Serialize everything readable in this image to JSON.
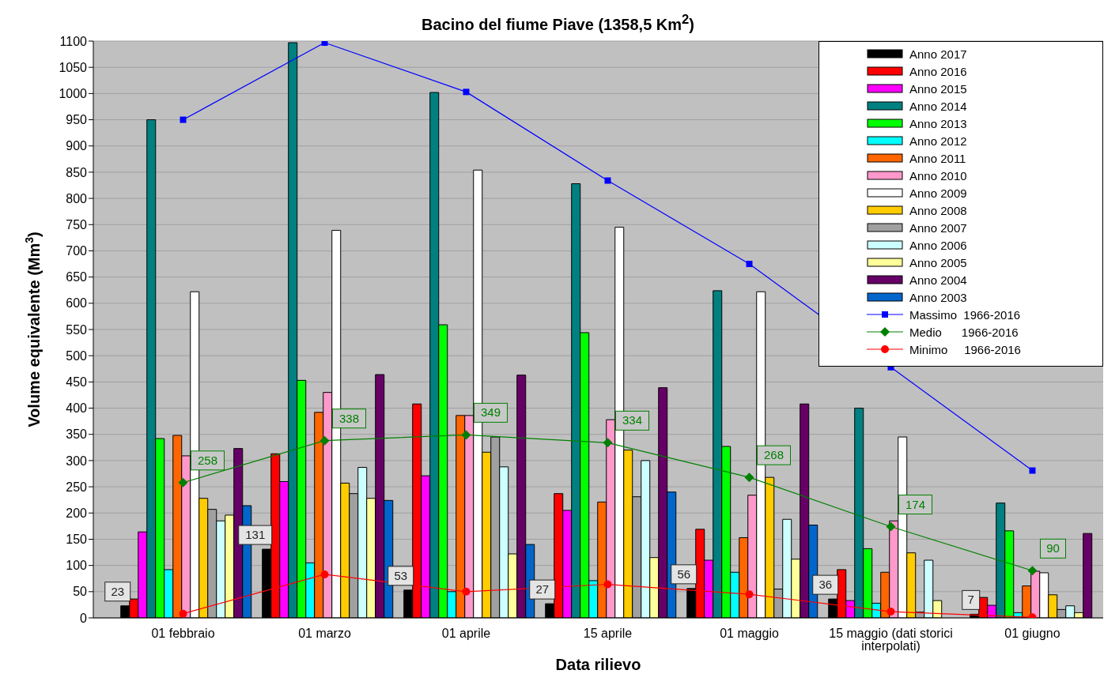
{
  "chart_data": {
    "type": "bar",
    "title": "Bacino del fiume Piave (1358,5 Km$^{2}$)",
    "xlabel": "Data rilievo",
    "ylabel": "Volume equivalente (Mm$^{3}$)",
    "categories": [
      "01 febbraio",
      "01 marzo",
      "01 aprile",
      "15 aprile",
      "01 maggio",
      "15 maggio (dati storici interpolati)",
      "01 giugno"
    ],
    "ylim": [
      0,
      1100
    ],
    "yticks": [
      0,
      50,
      100,
      150,
      200,
      250,
      300,
      350,
      400,
      450,
      500,
      550,
      600,
      650,
      700,
      750,
      800,
      850,
      900,
      950,
      1000,
      1050,
      1100
    ],
    "grid": "y",
    "legend": "top right",
    "series": [
      {
        "name": "Anno 2017",
        "color": "#000000",
        "values": [
          23,
          131,
          53,
          27,
          56,
          36,
          7
        ],
        "value_labels": [
          "23",
          "131",
          "53",
          "27",
          "56",
          "36",
          "7"
        ]
      },
      {
        "name": "Anno 2016",
        "color": "#ff0000",
        "values": [
          36,
          313,
          408,
          237,
          169,
          92,
          39
        ]
      },
      {
        "name": "Anno 2015",
        "color": "#ff00ff",
        "values": [
          164,
          260,
          271,
          205,
          110,
          33,
          24
        ]
      },
      {
        "name": "Anno 2014",
        "color": "#008080",
        "values": [
          950,
          1097,
          1002,
          828,
          624,
          400,
          219
        ]
      },
      {
        "name": "Anno 2013",
        "color": "#00ff00",
        "values": [
          342,
          453,
          559,
          544,
          327,
          132,
          166
        ]
      },
      {
        "name": "Anno 2012",
        "color": "#00ffff",
        "values": [
          92,
          105,
          50,
          71,
          87,
          28,
          10
        ]
      },
      {
        "name": "Anno 2011",
        "color": "#ff6600",
        "values": [
          348,
          392,
          386,
          221,
          153,
          87,
          61
        ]
      },
      {
        "name": "Anno 2010",
        "color": "#ff99cc",
        "values": [
          309,
          430,
          386,
          378,
          234,
          185,
          89
        ]
      },
      {
        "name": "Anno 2009",
        "color": "#ffffff",
        "values": [
          622,
          739,
          854,
          745,
          622,
          345,
          86
        ]
      },
      {
        "name": "Anno 2008",
        "color": "#ffcc00",
        "values": [
          228,
          257,
          316,
          320,
          268,
          124,
          44
        ]
      },
      {
        "name": "Anno 2007",
        "color": "#a0a0a0",
        "values": [
          207,
          237,
          345,
          231,
          55,
          11,
          16
        ]
      },
      {
        "name": "Anno 2006",
        "color": "#ccffff",
        "values": [
          185,
          287,
          288,
          300,
          188,
          110,
          23
        ]
      },
      {
        "name": "Anno 2005",
        "color": "#ffff99",
        "values": [
          196,
          228,
          122,
          115,
          112,
          33,
          10
        ]
      },
      {
        "name": "Anno 2004",
        "color": "#660066",
        "values": [
          323,
          464,
          463,
          439,
          408,
          null,
          161
        ]
      },
      {
        "name": "Anno 2003",
        "color": "#0066cc",
        "values": [
          214,
          224,
          140,
          240,
          177,
          null,
          null
        ]
      },
      {
        "name": "Massimo  1966-2016",
        "type": "line",
        "marker": "square",
        "color": "#0000ff",
        "values": [
          950,
          1097,
          1003,
          834,
          675,
          478,
          281
        ]
      },
      {
        "name": "Medio      1966-2016",
        "type": "line",
        "marker": "diamond",
        "color": "#008000",
        "values": [
          258,
          338,
          349,
          334,
          268,
          174,
          90
        ],
        "value_labels": [
          "258",
          "338",
          "349",
          "334",
          "268",
          "174",
          "90"
        ]
      },
      {
        "name": "Minimo     1966-2016",
        "type": "line",
        "marker": "circle",
        "color": "#ff0000",
        "values": [
          8,
          83,
          50,
          64,
          45,
          12,
          1
        ]
      }
    ]
  }
}
